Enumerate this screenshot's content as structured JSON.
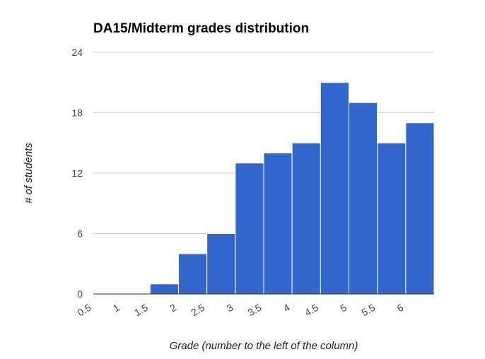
{
  "chart_data": {
    "type": "bar",
    "title": "DA15/Midterm grades distribution",
    "xlabel": "Grade (number to the left of the column)",
    "ylabel": "# of students",
    "categories": [
      "0.5",
      "1",
      "1.5",
      "2",
      "2.5",
      "3",
      "3.5",
      "4",
      "4.5",
      "5",
      "5.5",
      "6"
    ],
    "values": [
      0,
      0,
      1,
      4,
      6,
      13,
      14,
      15,
      21,
      19,
      15,
      17
    ],
    "ylim": [
      0,
      24
    ],
    "yticks": [
      "0",
      "6",
      "12",
      "18",
      "24"
    ],
    "grid": true,
    "bar_color": "#3366cc"
  }
}
